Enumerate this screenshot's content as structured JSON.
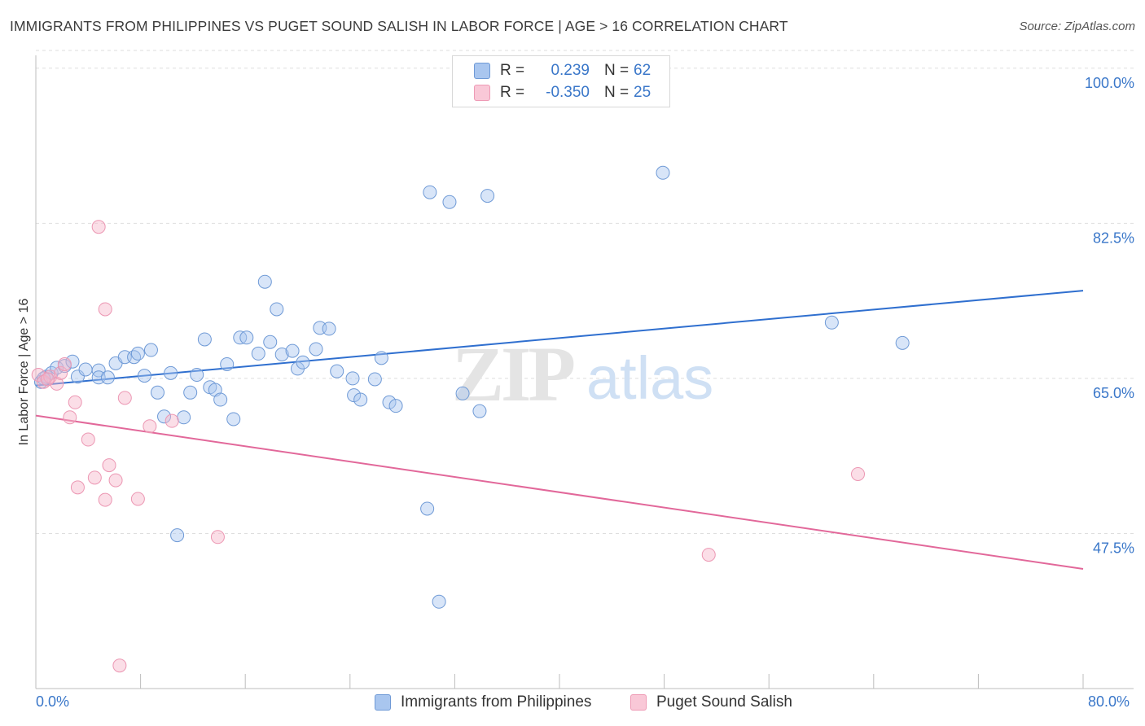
{
  "header": {
    "title": "IMMIGRANTS FROM PHILIPPINES VS PUGET SOUND SALISH IN LABOR FORCE | AGE > 16 CORRELATION CHART",
    "source": "Source: ZipAtlas.com"
  },
  "legend": {
    "rows": [
      {
        "r_label": "R =",
        "r_value": "0.239",
        "n_label": "N =",
        "n_value": "62"
      },
      {
        "r_label": "R =",
        "r_value": "-0.350",
        "n_label": "N =",
        "n_value": "25"
      }
    ]
  },
  "bottom_legend": {
    "series1": "Immigrants from Philippines",
    "series2": "Puget Sound Salish"
  },
  "axes": {
    "x_min_label": "0.0%",
    "x_max_label": "80.0%"
  },
  "colors": {
    "blue": "#3a77c9",
    "blue_fill": "#a9c6ef",
    "pink": "#e55f8e",
    "pink_fill": "#f6b5c9"
  },
  "chart_data": {
    "type": "scatter",
    "title": "IMMIGRANTS FROM PHILIPPINES VS PUGET SOUND SALISH IN LABOR FORCE | AGE > 16 CORRELATION CHART",
    "xlabel": "",
    "ylabel": "In Labor Force | Age > 16",
    "xlim": [
      0,
      80
    ],
    "ylim": [
      30,
      102
    ],
    "y_ticks": [
      47.5,
      65.0,
      82.5,
      100.0
    ],
    "y_tick_labels": [
      "47.5%",
      "65.0%",
      "82.5%",
      "100.0%"
    ],
    "x_tick_labels": [
      "0.0%",
      "80.0%"
    ],
    "watermark": "ZIPatlas",
    "series": [
      {
        "name": "Immigrants from Philippines",
        "color": "#3a77c9",
        "R": 0.239,
        "N": 62,
        "trend": {
          "x": [
            0,
            80
          ],
          "y": [
            64.2,
            74.9
          ]
        },
        "points": [
          [
            0.4,
            64.6
          ],
          [
            0.8,
            65.2
          ],
          [
            1.2,
            65.6
          ],
          [
            1.6,
            66.2
          ],
          [
            2.2,
            66.4
          ],
          [
            2.8,
            66.9
          ],
          [
            3.2,
            65.2
          ],
          [
            3.8,
            66.0
          ],
          [
            4.8,
            65.9
          ],
          [
            4.8,
            65.1
          ],
          [
            5.5,
            65.1
          ],
          [
            6.1,
            66.7
          ],
          [
            6.8,
            67.4
          ],
          [
            7.5,
            67.4
          ],
          [
            7.8,
            67.8
          ],
          [
            8.3,
            65.3
          ],
          [
            8.8,
            68.2
          ],
          [
            9.3,
            63.4
          ],
          [
            9.8,
            60.7
          ],
          [
            10.3,
            65.6
          ],
          [
            10.8,
            47.3
          ],
          [
            11.3,
            60.6
          ],
          [
            11.8,
            63.4
          ],
          [
            12.3,
            65.4
          ],
          [
            12.9,
            69.4
          ],
          [
            13.3,
            64.0
          ],
          [
            13.7,
            63.7
          ],
          [
            14.1,
            62.6
          ],
          [
            14.6,
            66.6
          ],
          [
            15.1,
            60.4
          ],
          [
            15.6,
            69.6
          ],
          [
            16.1,
            69.6
          ],
          [
            17.0,
            67.8
          ],
          [
            17.5,
            75.9
          ],
          [
            17.9,
            69.1
          ],
          [
            18.4,
            72.8
          ],
          [
            18.8,
            67.7
          ],
          [
            19.6,
            68.1
          ],
          [
            20.0,
            66.1
          ],
          [
            20.4,
            66.8
          ],
          [
            21.4,
            68.3
          ],
          [
            21.7,
            70.7
          ],
          [
            22.4,
            70.6
          ],
          [
            23.0,
            65.8
          ],
          [
            24.2,
            65.0
          ],
          [
            24.3,
            63.1
          ],
          [
            24.8,
            62.6
          ],
          [
            25.9,
            64.9
          ],
          [
            26.4,
            67.3
          ],
          [
            27.0,
            62.3
          ],
          [
            27.5,
            61.9
          ],
          [
            29.9,
            50.3
          ],
          [
            30.1,
            86.0
          ],
          [
            30.8,
            39.8
          ],
          [
            31.6,
            84.9
          ],
          [
            32.6,
            63.3
          ],
          [
            33.9,
            61.3
          ],
          [
            34.5,
            85.6
          ],
          [
            47.9,
            88.2
          ],
          [
            60.8,
            71.3
          ],
          [
            66.2,
            69.0
          ],
          [
            0.6,
            65.0
          ]
        ]
      },
      {
        "name": "Puget Sound Salish",
        "color": "#e55f8e",
        "R": -0.35,
        "N": 25,
        "trend": {
          "x": [
            0,
            80
          ],
          "y": [
            60.8,
            43.5
          ]
        },
        "points": [
          [
            0.2,
            65.4
          ],
          [
            0.6,
            64.6
          ],
          [
            1.1,
            65.2
          ],
          [
            1.6,
            64.4
          ],
          [
            1.9,
            65.6
          ],
          [
            2.2,
            66.6
          ],
          [
            2.6,
            60.6
          ],
          [
            3.0,
            62.3
          ],
          [
            3.2,
            52.7
          ],
          [
            4.0,
            58.1
          ],
          [
            4.5,
            53.8
          ],
          [
            4.8,
            82.1
          ],
          [
            5.3,
            51.3
          ],
          [
            5.3,
            72.8
          ],
          [
            5.6,
            55.2
          ],
          [
            6.1,
            53.5
          ],
          [
            6.4,
            32.6
          ],
          [
            6.8,
            62.8
          ],
          [
            7.8,
            51.4
          ],
          [
            8.7,
            59.6
          ],
          [
            10.4,
            60.2
          ],
          [
            13.9,
            47.1
          ],
          [
            51.4,
            45.1
          ],
          [
            62.8,
            54.2
          ],
          [
            0.9,
            64.9
          ]
        ]
      }
    ]
  }
}
